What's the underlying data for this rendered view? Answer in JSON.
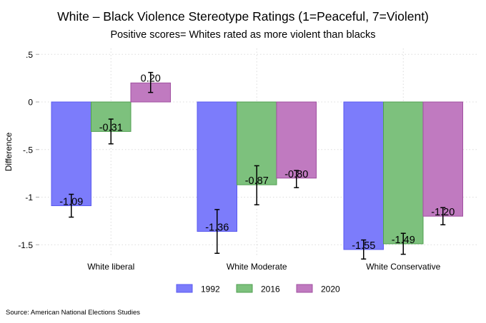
{
  "chart_data": {
    "type": "bar",
    "title": "White – Black Violence Stereotype Ratings (1=Peaceful, 7=Violent)",
    "subtitle": "Positive scores= Whites rated as more violent than blacks",
    "xlabel": "",
    "ylabel": "Difference",
    "ylim": [
      -1.7,
      0.6
    ],
    "yticks": [
      0.5,
      0,
      -0.5,
      -1,
      -1.5
    ],
    "ytick_labels": [
      ".5",
      "0",
      "-.5",
      "-1",
      "-1.5"
    ],
    "grid": true,
    "legend_position": "bottom",
    "categories": [
      "White liberal",
      "White Moderate",
      "White Conservative"
    ],
    "series": [
      {
        "name": "1992",
        "color": "#7c7cfb",
        "stroke": "#5a5af0",
        "values": [
          -1.09,
          -1.36,
          -1.55
        ],
        "labels": [
          "-1.09",
          "-1.36",
          "-1.55"
        ],
        "ci_low": [
          -1.21,
          -1.59,
          -1.65
        ],
        "ci_high": [
          -0.97,
          -1.13,
          -1.45
        ]
      },
      {
        "name": "2016",
        "color": "#7dc17d",
        "stroke": "#4f9f4f",
        "values": [
          -0.31,
          -0.87,
          -1.49
        ],
        "labels": [
          "-0.31",
          "-0.87",
          "-1.49"
        ],
        "ci_low": [
          -0.44,
          -1.08,
          -1.6
        ],
        "ci_high": [
          -0.18,
          -0.67,
          -1.38
        ]
      },
      {
        "name": "2020",
        "color": "#c07ac0",
        "stroke": "#a050a0",
        "values": [
          0.2,
          -0.8,
          -1.2
        ],
        "labels": [
          "0.20",
          "-0.80",
          "-1.20"
        ],
        "ci_low": [
          0.1,
          -0.9,
          -1.29
        ],
        "ci_high": [
          0.31,
          -0.72,
          -1.11
        ]
      }
    ],
    "source": "Source: American National Elections Studies"
  }
}
